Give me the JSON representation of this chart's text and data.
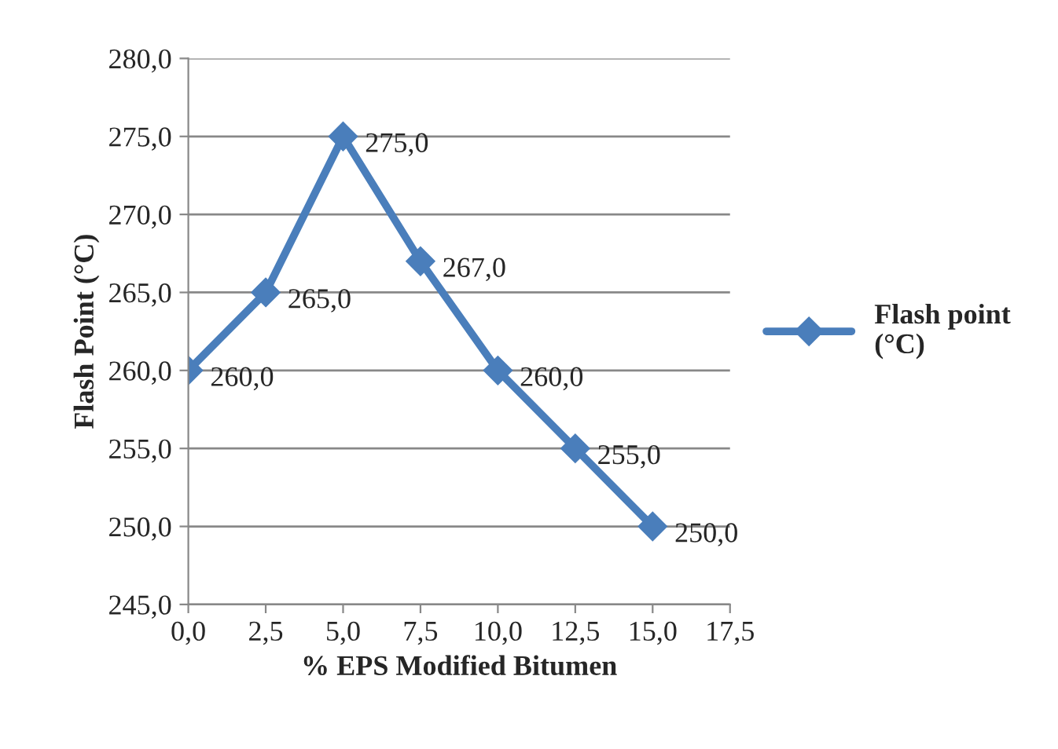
{
  "chart_data": {
    "type": "line",
    "xlabel": "% EPS Modified Bitumen",
    "ylabel": "Flash Point (°C)",
    "x": [
      0,
      2.5,
      5,
      7.5,
      10,
      12.5,
      15
    ],
    "series": [
      {
        "name": "Flash point (°C)",
        "color": "#4a7ebb",
        "values": [
          260,
          265,
          275,
          267,
          260,
          255,
          250
        ],
        "value_labels": [
          "260,0",
          "265,0",
          "275,0",
          "267,0",
          "260,0",
          "255,0",
          "250,0"
        ]
      }
    ],
    "xlim": [
      0,
      17.5
    ],
    "xticks": [
      {
        "value": 0,
        "label": "0,0"
      },
      {
        "value": 2.5,
        "label": "2,5"
      },
      {
        "value": 5,
        "label": "5,0"
      },
      {
        "value": 7.5,
        "label": "7,5"
      },
      {
        "value": 10,
        "label": "10,0"
      },
      {
        "value": 12.5,
        "label": "12,5"
      },
      {
        "value": 15,
        "label": "15,0"
      },
      {
        "value": 17.5,
        "label": "17,5"
      }
    ],
    "ylim": [
      245,
      280
    ],
    "yticks": [
      {
        "value": 245,
        "label": "245,0"
      },
      {
        "value": 250,
        "label": "250,0"
      },
      {
        "value": 255,
        "label": "255,0"
      },
      {
        "value": 260,
        "label": "260,0"
      },
      {
        "value": 265,
        "label": "265,0"
      },
      {
        "value": 270,
        "label": "270,0"
      },
      {
        "value": 275,
        "label": "275,0"
      },
      {
        "value": 280,
        "label": "280,0"
      }
    ],
    "grid": "y",
    "legend": "right",
    "marker": "diamond",
    "line_style": "solid"
  }
}
